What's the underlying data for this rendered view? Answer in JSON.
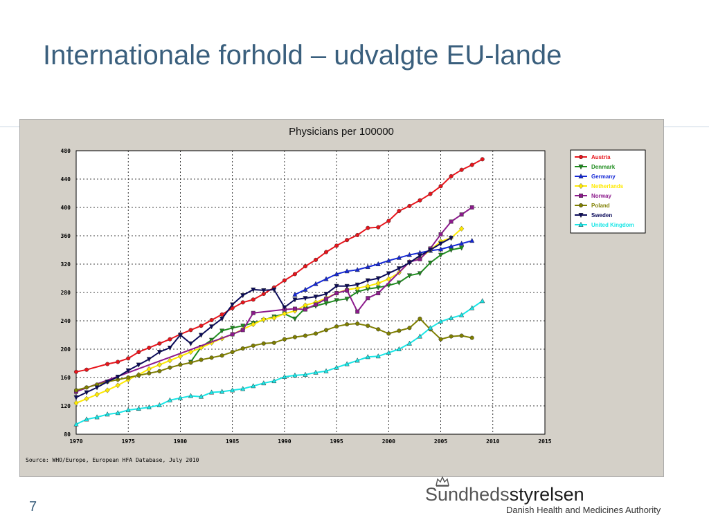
{
  "slide": {
    "title": "Internationale forhold – udvalgte EU-lande",
    "page_number": "7",
    "logo_name_part1": "Sundheds",
    "logo_name_part2": "styrelsen",
    "logo_subtitle": "Danish Health and Medicines Authority"
  },
  "colors": {
    "title": "#3a5f7d",
    "plot_background": "#ffffff",
    "frame_background": "#d4d0c8"
  },
  "chart_data": {
    "type": "line",
    "title": "Physicians per 100000",
    "source": "Source: WHO/Europe, European HFA Database, July 2010",
    "xlabel": "",
    "ylabel": "",
    "xlim": [
      1970,
      2015
    ],
    "ylim": [
      80,
      480
    ],
    "xticks": [
      1970,
      1975,
      1980,
      1985,
      1990,
      1995,
      2000,
      2005,
      2010,
      2015
    ],
    "yticks": [
      80,
      120,
      160,
      200,
      240,
      280,
      320,
      360,
      400,
      440,
      480
    ],
    "grid": true,
    "legend_position": "top-right",
    "series": [
      {
        "name": "Austria",
        "color": "#e8141b",
        "marker": "circle",
        "x": [
          1970,
          1971,
          1973,
          1974,
          1975,
          1976,
          1977,
          1978,
          1979,
          1980,
          1981,
          1982,
          1983,
          1984,
          1985,
          1986,
          1987,
          1988,
          1989,
          1990,
          1991,
          1992,
          1993,
          1994,
          1995,
          1996,
          1997,
          1998,
          1999,
          2000,
          2001,
          2002,
          2003,
          2004,
          2005,
          2006,
          2007,
          2008,
          2009
        ],
        "y": [
          168,
          171,
          179,
          182,
          187,
          196,
          202,
          208,
          214,
          221,
          227,
          233,
          241,
          249,
          258,
          266,
          270,
          278,
          287,
          297,
          306,
          317,
          326,
          337,
          346,
          354,
          361,
          371,
          372,
          381,
          395,
          402,
          410,
          419,
          430,
          444,
          453,
          460,
          468
        ]
      },
      {
        "name": "Denmark",
        "color": "#1e8c1e",
        "marker": "triangle-down",
        "x": [
          1981,
          1982,
          1983,
          1984,
          1985,
          1986,
          1987,
          1988,
          1989,
          1990,
          1991,
          1992,
          1993,
          1994,
          1995,
          1996,
          1997,
          1998,
          1999,
          2000,
          2001,
          2002,
          2003,
          2004,
          2005,
          2006,
          2007
        ],
        "y": [
          182,
          203,
          213,
          226,
          230,
          233,
          237,
          241,
          246,
          250,
          243,
          258,
          261,
          265,
          269,
          271,
          281,
          285,
          287,
          290,
          294,
          304,
          307,
          322,
          333,
          340,
          343
        ]
      },
      {
        "name": "Germany",
        "color": "#1428d6",
        "marker": "triangle-up",
        "x": [
          1991,
          1992,
          1993,
          1994,
          1995,
          1996,
          1997,
          1998,
          1999,
          2000,
          2001,
          2002,
          2003,
          2004,
          2005,
          2006,
          2007,
          2008
        ],
        "y": [
          277,
          284,
          292,
          299,
          306,
          310,
          312,
          316,
          320,
          325,
          329,
          333,
          336,
          339,
          341,
          345,
          349,
          353
        ]
      },
      {
        "name": "Netherlands",
        "color": "#ffea00",
        "marker": "diamond",
        "x": [
          1970,
          1971,
          1972,
          1973,
          1974,
          1975,
          1976,
          1977,
          1978,
          1979,
          1980,
          1981,
          1982,
          1983,
          1984,
          1985,
          1986,
          1987,
          1988,
          1989,
          1990,
          1991,
          1992,
          1993,
          1994,
          1995,
          1996,
          1997,
          1998,
          1999,
          2000,
          2001,
          2002,
          2003,
          2004,
          2005,
          2006,
          2007
        ],
        "y": [
          124,
          130,
          136,
          142,
          149,
          157,
          164,
          172,
          178,
          184,
          190,
          196,
          202,
          209,
          215,
          221,
          228,
          235,
          242,
          244,
          250,
          254,
          262,
          266,
          272,
          279,
          284,
          286,
          289,
          293,
          299,
          308,
          323,
          328,
          340,
          352,
          357,
          370
        ]
      },
      {
        "name": "Norway",
        "color": "#8c1a8c",
        "marker": "square",
        "x": [
          1970,
          1985,
          1986,
          1987,
          1990,
          1991,
          1992,
          1993,
          1994,
          1995,
          1996,
          1997,
          1998,
          1999,
          2002,
          2003,
          2004,
          2005,
          2006,
          2007,
          2008
        ],
        "y": [
          140,
          221,
          227,
          251,
          256,
          257,
          256,
          263,
          271,
          279,
          283,
          253,
          272,
          279,
          323,
          327,
          342,
          362,
          380,
          390,
          400
        ]
      },
      {
        "name": "Poland",
        "color": "#7f7f00",
        "marker": "circle",
        "x": [
          1970,
          1971,
          1972,
          1973,
          1974,
          1975,
          1976,
          1977,
          1978,
          1979,
          1980,
          1981,
          1982,
          1983,
          1984,
          1985,
          1986,
          1987,
          1988,
          1989,
          1990,
          1991,
          1992,
          1993,
          1994,
          1995,
          1996,
          1997,
          1998,
          1999,
          2000,
          2001,
          2002,
          2003,
          2004,
          2005,
          2006,
          2007,
          2008
        ],
        "y": [
          142,
          146,
          150,
          154,
          157,
          160,
          163,
          166,
          169,
          174,
          178,
          181,
          185,
          188,
          191,
          196,
          201,
          205,
          208,
          209,
          214,
          217,
          219,
          222,
          227,
          232,
          235,
          236,
          233,
          228,
          222,
          226,
          230,
          243,
          228,
          214,
          218,
          219,
          216
        ]
      },
      {
        "name": "Sweden",
        "color": "#0a0a5a",
        "marker": "triangle-down",
        "x": [
          1970,
          1971,
          1972,
          1973,
          1974,
          1975,
          1976,
          1977,
          1978,
          1979,
          1980,
          1981,
          1982,
          1983,
          1984,
          1985,
          1986,
          1987,
          1988,
          1989,
          1990,
          1991,
          1992,
          1993,
          1994,
          1995,
          1996,
          1997,
          1998,
          1999,
          2000,
          2001,
          2002,
          2003,
          2004,
          2005,
          2006
        ],
        "y": [
          132,
          139,
          146,
          154,
          161,
          170,
          178,
          186,
          196,
          202,
          220,
          208,
          220,
          232,
          243,
          263,
          276,
          284,
          283,
          284,
          259,
          270,
          272,
          274,
          278,
          289,
          289,
          291,
          297,
          300,
          307,
          314,
          322,
          332,
          340,
          349,
          357
        ]
      },
      {
        "name": "United Kingdom",
        "color": "#19e6e6",
        "marker": "triangle-up",
        "x": [
          1970,
          1971,
          1972,
          1973,
          1974,
          1975,
          1976,
          1977,
          1978,
          1979,
          1980,
          1981,
          1982,
          1983,
          1984,
          1985,
          1986,
          1987,
          1988,
          1989,
          1990,
          1991,
          1992,
          1993,
          1994,
          1995,
          1996,
          1997,
          1998,
          1999,
          2000,
          2001,
          2002,
          2003,
          2004,
          2005,
          2006,
          2007,
          2008,
          2009
        ],
        "y": [
          94,
          101,
          104,
          108,
          110,
          114,
          116,
          118,
          121,
          128,
          131,
          134,
          133,
          139,
          140,
          142,
          144,
          148,
          152,
          155,
          161,
          163,
          164,
          167,
          169,
          174,
          179,
          184,
          189,
          190,
          195,
          200,
          208,
          218,
          230,
          239,
          244,
          248,
          258,
          268
        ]
      }
    ]
  }
}
